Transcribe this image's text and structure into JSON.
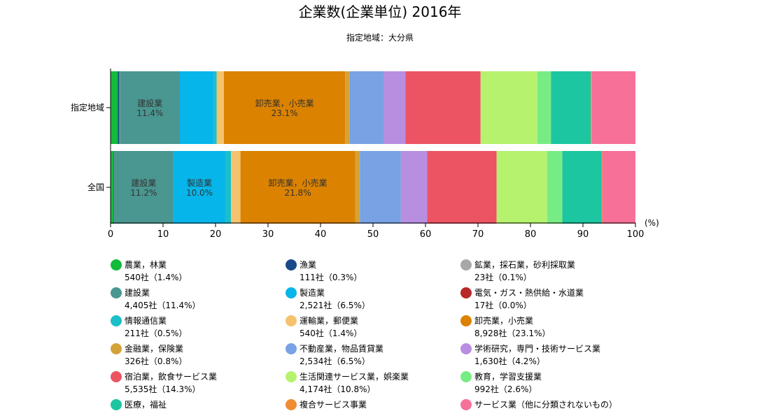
{
  "chart_data": {
    "type": "bar",
    "orientation": "horizontal",
    "stacked": true,
    "percent": true,
    "title": "企業数(企業単位) 2016年",
    "subtitle": "指定地域：大分県",
    "categories": [
      "指定地域",
      "全国"
    ],
    "xlim": [
      0,
      100
    ],
    "xticks": [
      "0",
      "10",
      "20",
      "30",
      "40",
      "50",
      "60",
      "70",
      "80",
      "90",
      "100"
    ],
    "xunit": "(%)",
    "series": [
      {
        "name": "農業，林業",
        "color": "#12bb3a",
        "values": [
          1.4,
          0.6
        ],
        "legend_value": "540社（1.4%）"
      },
      {
        "name": "漁業",
        "color": "#1a4a8a",
        "values": [
          0.3,
          0.1
        ],
        "legend_value": "111社（0.3%）"
      },
      {
        "name": "鉱業，採石業，砂利採取業",
        "color": "#a8a8a8",
        "values": [
          0.1,
          0.0
        ],
        "legend_value": "23社（0.1%）"
      },
      {
        "name": "建設業",
        "color": "#4a9690",
        "values": [
          11.4,
          11.2
        ],
        "legend_value": "4,405社（11.4%）"
      },
      {
        "name": "製造業",
        "color": "#06b6ea",
        "values": [
          6.5,
          10.0
        ],
        "legend_value": "2,521社（6.5%）"
      },
      {
        "name": "電気・ガス・熱供給・水道業",
        "color": "#b82828",
        "values": [
          0.0,
          0.0
        ],
        "legend_value": "17社（0.0%）"
      },
      {
        "name": "情報通信業",
        "color": "#1bbfc8",
        "values": [
          0.5,
          1.0
        ],
        "legend_value": "211社（0.5%）"
      },
      {
        "name": "運輸業，郵便業",
        "color": "#f5c26e",
        "values": [
          1.4,
          1.8
        ],
        "legend_value": "540社（1.4%）"
      },
      {
        "name": "卸売業，小売業",
        "color": "#db8200",
        "values": [
          23.1,
          21.8
        ],
        "legend_value": "8,928社（23.1%）"
      },
      {
        "name": "金融業，保険業",
        "color": "#d4a236",
        "values": [
          0.8,
          0.9
        ],
        "legend_value": "326社（0.8%）"
      },
      {
        "name": "不動産業，物品賃貸業",
        "color": "#78a2e4",
        "values": [
          6.5,
          7.8
        ],
        "legend_value": "2,534社（6.5%）"
      },
      {
        "name": "学術研究，専門・技術サービス業",
        "color": "#b88ee0",
        "values": [
          4.2,
          5.0
        ],
        "legend_value": "1,630社（4.2%）"
      },
      {
        "name": "宿泊業，飲食サービス業",
        "color": "#ec5464",
        "values": [
          14.3,
          13.2
        ],
        "legend_value": "5,535社（14.3%）"
      },
      {
        "name": "生活関連サービス業，娯楽業",
        "color": "#b6f26e",
        "values": [
          10.8,
          9.6
        ],
        "legend_value": "4,174社（10.8%）"
      },
      {
        "name": "教育，学習支援業",
        "color": "#78ec84",
        "values": [
          2.6,
          2.9
        ],
        "legend_value": "992社（2.6%）"
      },
      {
        "name": "医療，福祉",
        "color": "#1cc6a0",
        "values": [
          7.6,
          7.5
        ],
        "legend_value": ""
      },
      {
        "name": "複合サービス事業",
        "color": "#f08c34",
        "values": [
          0.2,
          0.1
        ],
        "legend_value": ""
      },
      {
        "name": "サービス業（他に分類されないもの）",
        "color": "#f67098",
        "values": [
          8.3,
          6.3
        ],
        "legend_value": ""
      }
    ],
    "bar_labels": [
      {
        "category": 0,
        "series": 3,
        "name": "建設業",
        "value": "11.4%"
      },
      {
        "category": 0,
        "series": 8,
        "name": "卸売業，小売業",
        "value": "23.1%"
      },
      {
        "category": 1,
        "series": 3,
        "name": "建設業",
        "value": "11.2%"
      },
      {
        "category": 1,
        "series": 4,
        "name": "製造業",
        "value": "10.0%"
      },
      {
        "category": 1,
        "series": 8,
        "name": "卸売業，小売業",
        "value": "21.8%"
      }
    ],
    "legend_placement": "bottom",
    "grid": false
  }
}
